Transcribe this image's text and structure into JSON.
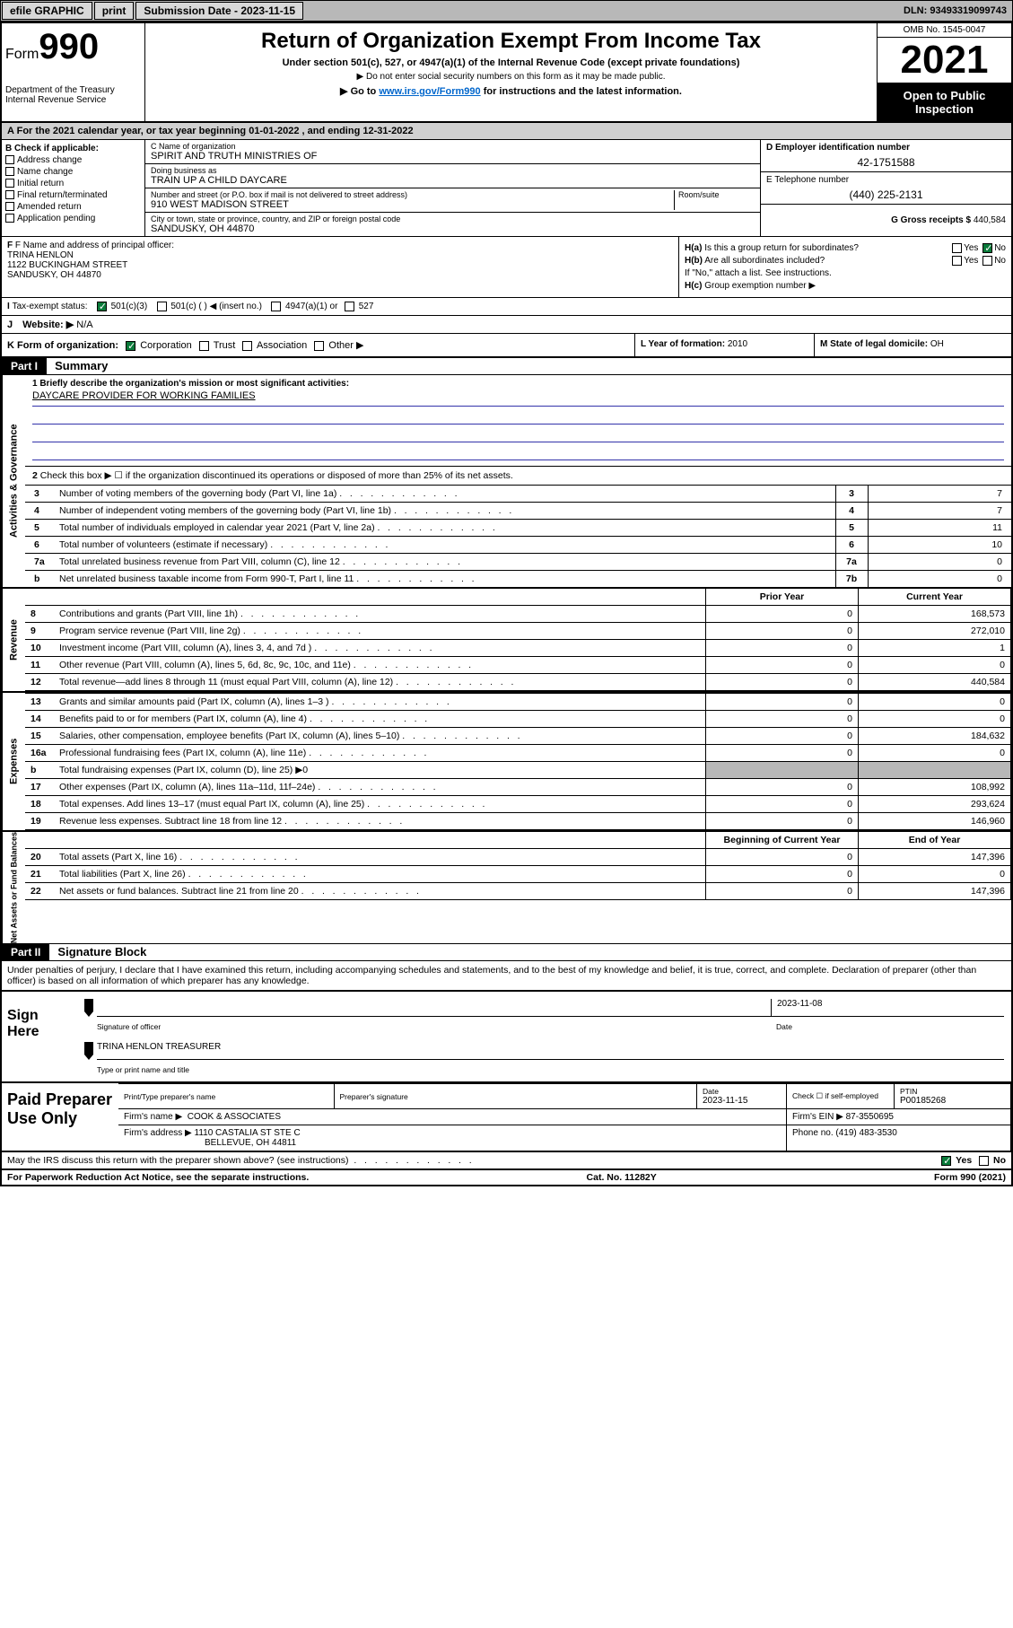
{
  "topbar": {
    "efile": "efile GRAPHIC",
    "print": "print",
    "sub_date_lbl": "Submission Date - 2023-11-15",
    "dln": "DLN: 93493319099743"
  },
  "header": {
    "form_word": "Form",
    "form_num": "990",
    "dept": "Department of the Treasury",
    "irs": "Internal Revenue Service",
    "title": "Return of Organization Exempt From Income Tax",
    "subtitle": "Under section 501(c), 527, or 4947(a)(1) of the Internal Revenue Code (except private foundations)",
    "note1": "▶ Do not enter social security numbers on this form as it may be made public.",
    "note2_pre": "▶ Go to ",
    "note2_link": "www.irs.gov/Form990",
    "note2_post": " for instructions and the latest information.",
    "omb": "OMB No. 1545-0047",
    "year": "2021",
    "open": "Open to Public Inspection"
  },
  "line_a": {
    "text": "For the 2021 calendar year, or tax year beginning 01-01-2022   , and ending 12-31-2022"
  },
  "box_b": {
    "title": "B Check if applicable:",
    "opts": [
      "Address change",
      "Name change",
      "Initial return",
      "Final return/terminated",
      "Amended return",
      "Application pending"
    ]
  },
  "box_c": {
    "name_lbl": "C Name of organization",
    "name_val": "SPIRIT AND TRUTH MINISTRIES OF",
    "dba_lbl": "Doing business as",
    "dba_val": "TRAIN UP A CHILD DAYCARE",
    "addr_lbl": "Number and street (or P.O. box if mail is not delivered to street address)",
    "room_lbl": "Room/suite",
    "addr_val": "910 WEST MADISON STREET",
    "city_lbl": "City or town, state or province, country, and ZIP or foreign postal code",
    "city_val": "SANDUSKY, OH  44870"
  },
  "box_d": {
    "ein_lbl": "D Employer identification number",
    "ein_val": "42-1751588",
    "tel_lbl": "E Telephone number",
    "tel_val": "(440) 225-2131",
    "gross_lbl": "G Gross receipts $",
    "gross_val": "440,584"
  },
  "box_f": {
    "lbl": "F Name and address of principal officer:",
    "name": "TRINA HENLON",
    "addr1": "1122 BUCKINGHAM STREET",
    "addr2": "SANDUSKY, OH  44870"
  },
  "box_h": {
    "ha": "Is this a group return for subordinates?",
    "hb": "Are all subordinates included?",
    "hb_note": "If \"No,\" attach a list. See instructions.",
    "hc": "Group exemption number ▶",
    "ha_lbl": "H(a)",
    "hb_lbl": "H(b)",
    "hc_lbl": "H(c)"
  },
  "box_i": {
    "lbl": "Tax-exempt status:",
    "opt1": "501(c)(3)",
    "opt2": "501(c) (  ) ◀ (insert no.)",
    "opt3": "4947(a)(1) or",
    "opt4": "527"
  },
  "box_j": {
    "lbl": "Website: ▶",
    "val": "N/A"
  },
  "box_k": {
    "lbl": "K Form of organization:",
    "opts": [
      "Corporation",
      "Trust",
      "Association",
      "Other ▶"
    ]
  },
  "box_l": {
    "lbl": "L Year of formation:",
    "val": "2010"
  },
  "box_m": {
    "lbl": "M State of legal domicile:",
    "val": "OH"
  },
  "part1": {
    "hdr": "Part I",
    "title": "Summary",
    "mission_lbl": "1   Briefly describe the organization's mission or most significant activities:",
    "mission_val": "DAYCARE PROVIDER FOR WORKING FAMILIES",
    "line2": "Check this box ▶ ☐  if the organization discontinued its operations or disposed of more than 25% of its net assets.",
    "sides": {
      "gov": "Activities & Governance",
      "rev": "Revenue",
      "exp": "Expenses",
      "net": "Net Assets or Fund Balances"
    },
    "gov_rows": [
      {
        "n": "3",
        "d": "Number of voting members of the governing body (Part VI, line 1a)",
        "box": "3",
        "v": "7"
      },
      {
        "n": "4",
        "d": "Number of independent voting members of the governing body (Part VI, line 1b)",
        "box": "4",
        "v": "7"
      },
      {
        "n": "5",
        "d": "Total number of individuals employed in calendar year 2021 (Part V, line 2a)",
        "box": "5",
        "v": "11"
      },
      {
        "n": "6",
        "d": "Total number of volunteers (estimate if necessary)",
        "box": "6",
        "v": "10"
      },
      {
        "n": "7a",
        "d": "Total unrelated business revenue from Part VIII, column (C), line 12",
        "box": "7a",
        "v": "0"
      },
      {
        "n": "b",
        "d": "Net unrelated business taxable income from Form 990-T, Part I, line 11",
        "box": "7b",
        "v": "0"
      }
    ],
    "col_prior": "Prior Year",
    "col_current": "Current Year",
    "col_boy": "Beginning of Current Year",
    "col_eoy": "End of Year",
    "rev_rows": [
      {
        "n": "8",
        "d": "Contributions and grants (Part VIII, line 1h)",
        "p": "0",
        "c": "168,573"
      },
      {
        "n": "9",
        "d": "Program service revenue (Part VIII, line 2g)",
        "p": "0",
        "c": "272,010"
      },
      {
        "n": "10",
        "d": "Investment income (Part VIII, column (A), lines 3, 4, and 7d )",
        "p": "0",
        "c": "1"
      },
      {
        "n": "11",
        "d": "Other revenue (Part VIII, column (A), lines 5, 6d, 8c, 9c, 10c, and 11e)",
        "p": "0",
        "c": "0"
      },
      {
        "n": "12",
        "d": "Total revenue—add lines 8 through 11 (must equal Part VIII, column (A), line 12)",
        "p": "0",
        "c": "440,584"
      }
    ],
    "exp_rows": [
      {
        "n": "13",
        "d": "Grants and similar amounts paid (Part IX, column (A), lines 1–3 )",
        "p": "0",
        "c": "0"
      },
      {
        "n": "14",
        "d": "Benefits paid to or for members (Part IX, column (A), line 4)",
        "p": "0",
        "c": "0"
      },
      {
        "n": "15",
        "d": "Salaries, other compensation, employee benefits (Part IX, column (A), lines 5–10)",
        "p": "0",
        "c": "184,632"
      },
      {
        "n": "16a",
        "d": "Professional fundraising fees (Part IX, column (A), line 11e)",
        "p": "0",
        "c": "0"
      },
      {
        "n": "b",
        "d": "Total fundraising expenses (Part IX, column (D), line 25) ▶0",
        "shaded": true
      },
      {
        "n": "17",
        "d": "Other expenses (Part IX, column (A), lines 11a–11d, 11f–24e)",
        "p": "0",
        "c": "108,992"
      },
      {
        "n": "18",
        "d": "Total expenses. Add lines 13–17 (must equal Part IX, column (A), line 25)",
        "p": "0",
        "c": "293,624"
      },
      {
        "n": "19",
        "d": "Revenue less expenses. Subtract line 18 from line 12",
        "p": "0",
        "c": "146,960"
      }
    ],
    "net_rows": [
      {
        "n": "20",
        "d": "Total assets (Part X, line 16)",
        "p": "0",
        "c": "147,396"
      },
      {
        "n": "21",
        "d": "Total liabilities (Part X, line 26)",
        "p": "0",
        "c": "0"
      },
      {
        "n": "22",
        "d": "Net assets or fund balances. Subtract line 21 from line 20",
        "p": "0",
        "c": "147,396"
      }
    ]
  },
  "part2": {
    "hdr": "Part II",
    "title": "Signature Block",
    "perjury": "Under penalties of perjury, I declare that I have examined this return, including accompanying schedules and statements, and to the best of my knowledge and belief, it is true, correct, and complete. Declaration of preparer (other than officer) is based on all information of which preparer has any knowledge."
  },
  "sign": {
    "here": "Sign Here",
    "sig_officer": "Signature of officer",
    "date_lbl": "Date",
    "date_val": "2023-11-08",
    "name": "TRINA HENLON  TREASURER",
    "name_lbl": "Type or print name and title"
  },
  "paid": {
    "lbl": "Paid Preparer Use Only",
    "col_name": "Print/Type preparer's name",
    "col_sig": "Preparer's signature",
    "col_date": "Date",
    "date_val": "2023-11-15",
    "check_lbl": "Check ☐ if self-employed",
    "ptin_lbl": "PTIN",
    "ptin_val": "P00185268",
    "firm_name_lbl": "Firm's name   ▶",
    "firm_name": "COOK & ASSOCIATES",
    "firm_ein_lbl": "Firm's EIN ▶",
    "firm_ein": "87-3550695",
    "firm_addr_lbl": "Firm's address ▶",
    "firm_addr1": "1110 CASTALIA ST STE C",
    "firm_addr2": "BELLEVUE, OH  44811",
    "phone_lbl": "Phone no.",
    "phone_val": "(419) 483-3530"
  },
  "footer": {
    "discuss": "May the IRS discuss this return with the preparer shown above? (see instructions)",
    "paperwork": "For Paperwork Reduction Act Notice, see the separate instructions.",
    "cat": "Cat. No. 11282Y",
    "form": "Form 990 (2021)"
  },
  "labels": {
    "yes": "Yes",
    "no": "No"
  }
}
